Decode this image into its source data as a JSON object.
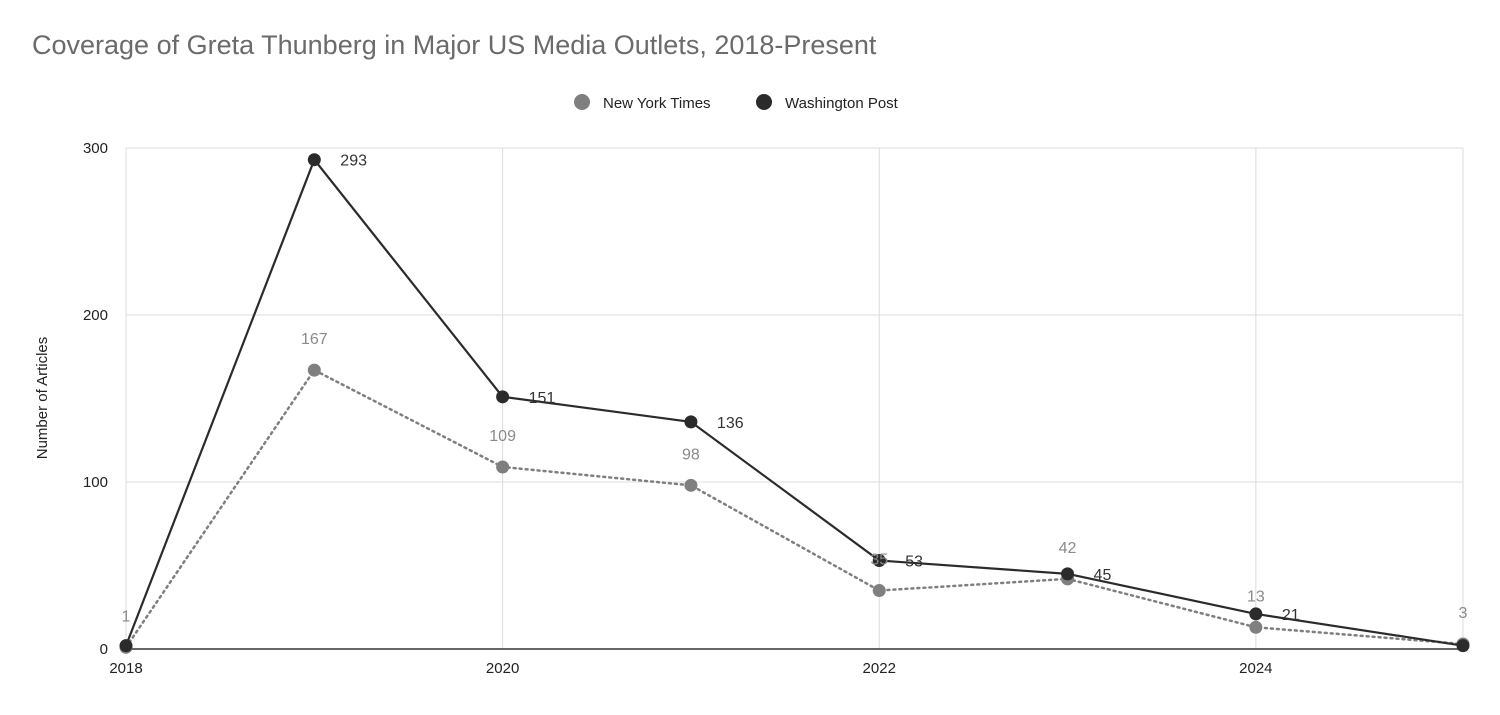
{
  "chart_data": {
    "type": "line",
    "title": "Coverage of Greta Thunberg in Major US Media Outlets, 2018-Present",
    "ylabel": "Number of Articles",
    "xlabel": "",
    "xlim": [
      2018,
      2025.1
    ],
    "ylim": [
      0,
      300
    ],
    "x_ticks": [
      "2018",
      "2020",
      "2022",
      "2024"
    ],
    "y_ticks": [
      "0",
      "100",
      "200",
      "300"
    ],
    "grid": true,
    "legend_position": "top",
    "x": [
      2018,
      2019,
      2020,
      2021,
      2022,
      2023,
      2024,
      2025.1
    ],
    "series": [
      {
        "name": "New York Times",
        "color": "#7f7f7f",
        "line_style": "dotted",
        "values": [
          1,
          167,
          109,
          98,
          35,
          42,
          13,
          3
        ],
        "labels": [
          "1",
          "167",
          "109",
          "98",
          "35",
          "42",
          "13",
          "3"
        ]
      },
      {
        "name": "Washington Post",
        "color": "#2b2b2b",
        "line_style": "solid",
        "values": [
          2,
          293,
          151,
          136,
          53,
          45,
          21,
          2
        ],
        "labels": [
          "",
          "293",
          "151",
          "136",
          "53",
          "45",
          "21",
          ""
        ]
      }
    ]
  }
}
